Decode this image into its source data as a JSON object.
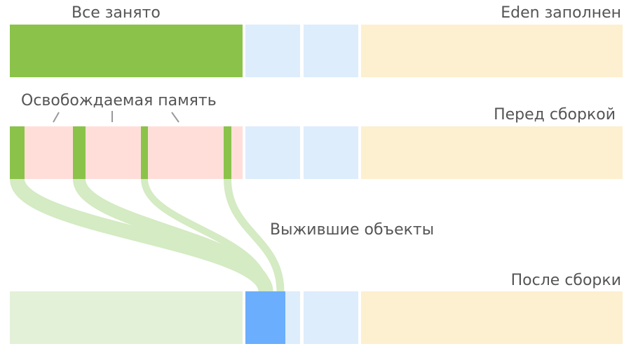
{
  "labels": {
    "all_occupied": "Все занято",
    "eden_full": "Eden заполнен",
    "freed_memory": "Освобождаемая память",
    "before_collection": "Перед сборкой",
    "surviving_objects": "Выжившие объекты",
    "after_collection": "После сборки"
  },
  "colors": {
    "eden_used": "#8bc34a",
    "freed": "#ffdeda",
    "survivor_space": "#deedfc",
    "old_generation": "#fdf0d0",
    "flow": "#d4ebc3",
    "eden_cleared": "#e3f1d9",
    "survivor_filled": "#6aaefd",
    "pointer": "#999999",
    "text": "#555555"
  }
}
